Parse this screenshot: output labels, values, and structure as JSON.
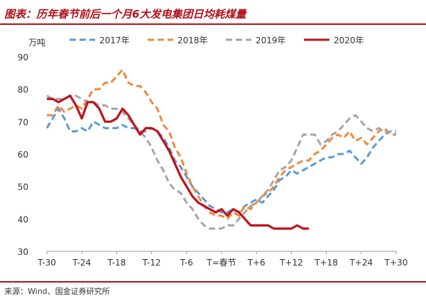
{
  "title": "图表：历年春节前后一个月6大发电集团日均耗煤量",
  "source": "来源：Wind、国金证券研究所",
  "chart_data": {
    "type": "line",
    "ylabel": "万吨",
    "ylim": [
      30,
      90
    ],
    "yticks": [
      30,
      40,
      50,
      60,
      70,
      80,
      90
    ],
    "xlim": [
      -30,
      30
    ],
    "xticks": [
      {
        "x": -30,
        "label": "T-30"
      },
      {
        "x": -24,
        "label": "T-24"
      },
      {
        "x": -18,
        "label": "T-18"
      },
      {
        "x": -12,
        "label": "T-12"
      },
      {
        "x": -6,
        "label": "T-6"
      },
      {
        "x": 0,
        "label": "T=春节"
      },
      {
        "x": 6,
        "label": "T+6"
      },
      {
        "x": 12,
        "label": "T+12"
      },
      {
        "x": 18,
        "label": "T+18"
      },
      {
        "x": 24,
        "label": "T+24"
      },
      {
        "x": 30,
        "label": "T+30"
      }
    ],
    "grid": false,
    "legend": "top",
    "series": [
      {
        "name": "2017年",
        "color": "#5b9bd5",
        "dash": true,
        "x": [
          -30,
          -29,
          -28,
          -27,
          -26,
          -25,
          -24,
          -23,
          -22,
          -21,
          -20,
          -19,
          -18,
          -17,
          -16,
          -15,
          -14,
          -13,
          -12,
          -11,
          -10,
          -9,
          -8,
          -7,
          -6,
          -5,
          -4,
          -3,
          -2,
          -1,
          0,
          1,
          2,
          3,
          4,
          5,
          6,
          7,
          8,
          9,
          10,
          11,
          12,
          13,
          14,
          15,
          16,
          17,
          18,
          19,
          20,
          21,
          22,
          23,
          24,
          25,
          26,
          27,
          28,
          29,
          30
        ],
        "values": [
          68,
          71,
          74,
          71,
          67,
          67,
          68,
          67,
          70,
          69,
          68,
          68,
          68,
          69,
          68,
          68,
          67,
          67,
          68,
          67,
          65,
          62,
          58,
          56,
          53,
          50,
          48,
          46,
          44,
          43,
          42,
          42,
          43,
          42,
          44,
          45,
          46,
          45,
          47,
          49,
          52,
          53,
          55,
          54,
          55,
          56,
          57,
          58,
          59,
          59,
          60,
          60,
          61,
          59,
          57,
          59,
          62,
          64,
          66,
          67,
          67
        ]
      },
      {
        "name": "2018年",
        "color": "#ed8a3c",
        "dash": true,
        "x": [
          -30,
          -29,
          -28,
          -27,
          -26,
          -25,
          -24,
          -23,
          -22,
          -21,
          -20,
          -19,
          -18,
          -17,
          -16,
          -15,
          -14,
          -13,
          -12,
          -11,
          -10,
          -9,
          -8,
          -7,
          -6,
          -5,
          -4,
          -3,
          -2,
          -1,
          0,
          1,
          2,
          3,
          4,
          5,
          6,
          7,
          8,
          9,
          10,
          11,
          12,
          13,
          14,
          15,
          16,
          17,
          18,
          19,
          20,
          21,
          22,
          23,
          24,
          25,
          26,
          27,
          28,
          29,
          30
        ],
        "values": [
          72,
          72,
          75,
          73,
          74,
          75,
          74,
          77,
          80,
          80,
          82,
          82,
          84,
          86,
          82,
          81,
          81,
          79,
          76,
          74,
          69,
          67,
          62,
          59,
          54,
          50,
          47,
          44,
          42,
          41,
          41,
          40,
          42,
          41,
          44,
          43,
          45,
          47,
          48,
          50,
          53,
          55,
          56,
          57,
          58,
          58,
          60,
          61,
          63,
          65,
          66,
          65,
          67,
          64,
          65,
          63,
          65,
          67,
          68,
          66,
          66
        ]
      },
      {
        "name": "2019年",
        "color": "#a5a5a5",
        "dash": true,
        "x": [
          -30,
          -29,
          -28,
          -27,
          -26,
          -25,
          -24,
          -23,
          -22,
          -21,
          -20,
          -19,
          -18,
          -17,
          -16,
          -15,
          -14,
          -13,
          -12,
          -11,
          -10,
          -9,
          -8,
          -7,
          -6,
          -5,
          -4,
          -3,
          -2,
          -1,
          0,
          1,
          2,
          3,
          4,
          5,
          6,
          7,
          8,
          9,
          10,
          11,
          12,
          13,
          14,
          15,
          16,
          17,
          18,
          19,
          20,
          21,
          22,
          23,
          24,
          25,
          26,
          27,
          28,
          29,
          30
        ],
        "values": [
          78,
          77,
          77,
          77,
          78,
          78,
          77,
          76,
          76,
          75,
          75,
          74,
          74,
          73,
          71,
          69,
          67,
          65,
          62,
          58,
          55,
          51,
          49,
          48,
          45,
          43,
          40,
          38,
          37,
          37,
          37,
          38,
          38,
          40,
          42,
          44,
          45,
          47,
          49,
          52,
          55,
          56,
          58,
          62,
          66,
          66,
          66,
          63,
          64,
          66,
          67,
          69,
          71,
          72,
          70,
          68,
          67,
          68,
          67,
          67,
          66
        ]
      },
      {
        "name": "2020年",
        "color": "#c0121c",
        "dash": false,
        "x": [
          -30,
          -29,
          -28,
          -27,
          -26,
          -25,
          -24,
          -23,
          -22,
          -21,
          -20,
          -19,
          -18,
          -17,
          -16,
          -15,
          -14,
          -13,
          -12,
          -11,
          -10,
          -9,
          -8,
          -7,
          -6,
          -5,
          -4,
          -3,
          -2,
          -1,
          0,
          1,
          2,
          3,
          4,
          5,
          6,
          7,
          8,
          9,
          10,
          11,
          12,
          13,
          14,
          15
        ],
        "values": [
          77,
          77,
          76,
          77,
          78,
          75,
          71,
          76,
          76,
          74,
          70,
          70,
          71,
          74,
          72,
          69,
          66,
          68,
          68,
          67,
          64,
          61,
          57,
          53,
          50,
          47,
          45,
          44,
          43,
          42,
          43,
          41,
          43,
          42,
          40,
          38,
          38,
          38,
          38,
          37,
          37,
          37,
          37,
          38,
          37,
          37
        ]
      }
    ]
  }
}
